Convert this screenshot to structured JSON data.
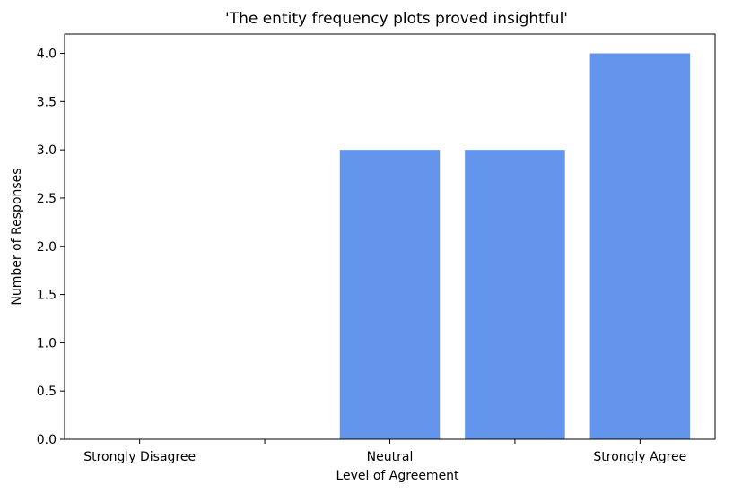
{
  "chart_data": {
    "type": "bar",
    "title": "'The entity frequency plots proved insightful'",
    "xlabel": "Level of Agreement",
    "ylabel": "Number of Responses",
    "categories": [
      "Strongly Disagree",
      "",
      "Neutral",
      "",
      "Strongly Agree"
    ],
    "values": [
      0,
      0,
      3,
      3,
      4
    ],
    "ylim": [
      0,
      4.2
    ],
    "yticks": [
      0.0,
      0.5,
      1.0,
      1.5,
      2.0,
      2.5,
      3.0,
      3.5,
      4.0
    ],
    "bar_color": "#6495ED",
    "grid": false,
    "legend": "none"
  }
}
